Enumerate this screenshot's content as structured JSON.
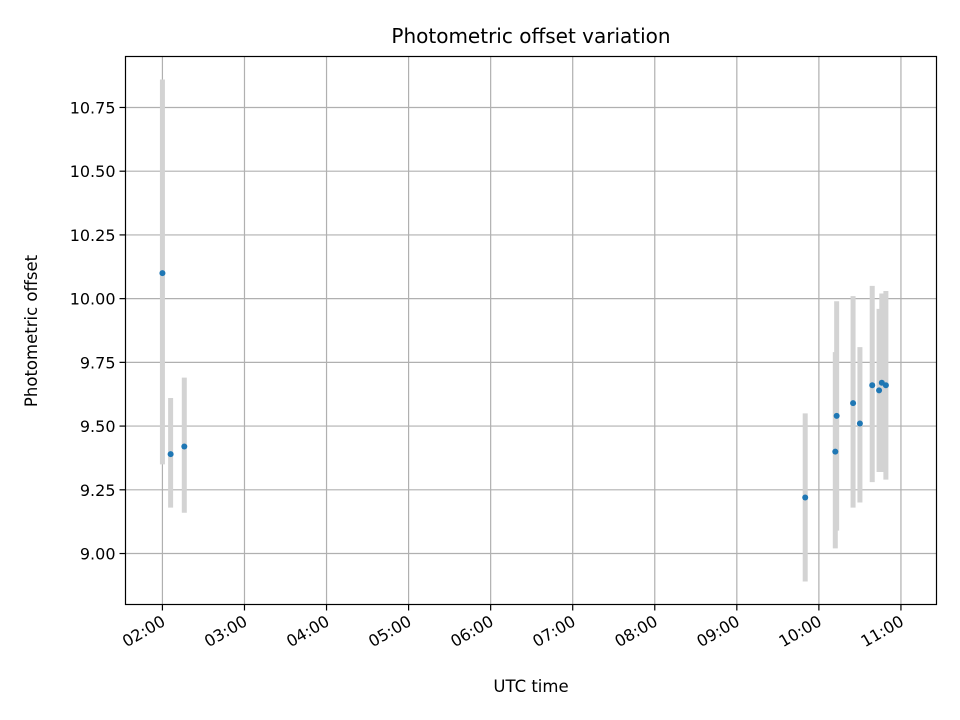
{
  "chart_data": {
    "type": "scatter",
    "title": "Photometric offset variation",
    "xlabel": "UTC time",
    "ylabel": "Photometric offset",
    "x_axis_kind": "time",
    "xlim": [
      "01:33",
      "11:26"
    ],
    "ylim": [
      8.8,
      10.95
    ],
    "x_ticks": [
      "02:00",
      "03:00",
      "04:00",
      "05:00",
      "06:00",
      "07:00",
      "08:00",
      "09:00",
      "10:00",
      "11:00"
    ],
    "y_ticks": [
      9.0,
      9.25,
      9.5,
      9.75,
      10.0,
      10.25,
      10.5,
      10.75
    ],
    "y_tick_labels": [
      "9.00",
      "9.25",
      "9.50",
      "9.75",
      "10.00",
      "10.25",
      "10.50",
      "10.75"
    ],
    "grid": true,
    "marker_color": "#1f77b4",
    "errorbar_color": "#d3d3d3",
    "points": [
      {
        "x": "02:00",
        "y": 10.1,
        "y_low": 9.35,
        "y_high": 10.86
      },
      {
        "x": "02:06",
        "y": 9.39,
        "y_low": 9.18,
        "y_high": 9.61
      },
      {
        "x": "02:16",
        "y": 9.42,
        "y_low": 9.16,
        "y_high": 9.69
      },
      {
        "x": "09:50",
        "y": 9.22,
        "y_low": 8.89,
        "y_high": 9.55
      },
      {
        "x": "10:12",
        "y": 9.4,
        "y_low": 9.02,
        "y_high": 9.79
      },
      {
        "x": "10:13",
        "y": 9.54,
        "y_low": 9.09,
        "y_high": 9.99
      },
      {
        "x": "10:25",
        "y": 9.59,
        "y_low": 9.18,
        "y_high": 10.01
      },
      {
        "x": "10:30",
        "y": 9.51,
        "y_low": 9.2,
        "y_high": 9.81
      },
      {
        "x": "10:39",
        "y": 9.66,
        "y_low": 9.28,
        "y_high": 10.05
      },
      {
        "x": "10:44",
        "y": 9.64,
        "y_low": 9.32,
        "y_high": 9.96
      },
      {
        "x": "10:46",
        "y": 9.67,
        "y_low": 9.32,
        "y_high": 10.02
      },
      {
        "x": "10:49",
        "y": 9.66,
        "y_low": 9.29,
        "y_high": 10.03
      }
    ]
  }
}
